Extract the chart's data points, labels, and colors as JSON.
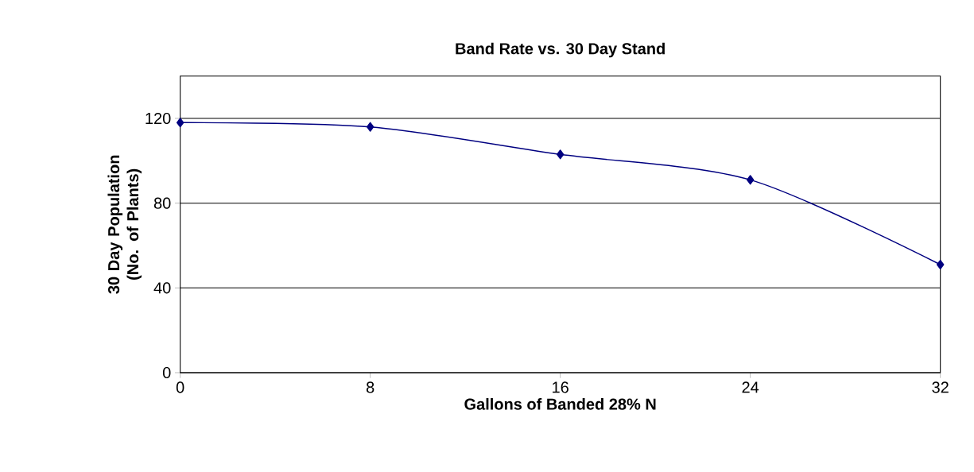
{
  "chart_data": {
    "type": "line",
    "title": "Band Rate vs. 30 Day Stand",
    "xlabel": "Gallons of Banded 28% N",
    "ylabel": "30 Day Population (No. of Plants)",
    "x": [
      0,
      8,
      16,
      24,
      32
    ],
    "series": [
      {
        "color": "#000080",
        "values": [
          118,
          116,
          103,
          91,
          51
        ]
      }
    ],
    "xlim": [
      0,
      32
    ],
    "xticks": [
      0,
      8,
      16,
      24,
      32
    ],
    "ylim": [
      0,
      140
    ],
    "yticks": [
      0,
      40,
      80,
      120
    ],
    "grid": "y",
    "marker": "diamond",
    "line_style": "solid"
  }
}
